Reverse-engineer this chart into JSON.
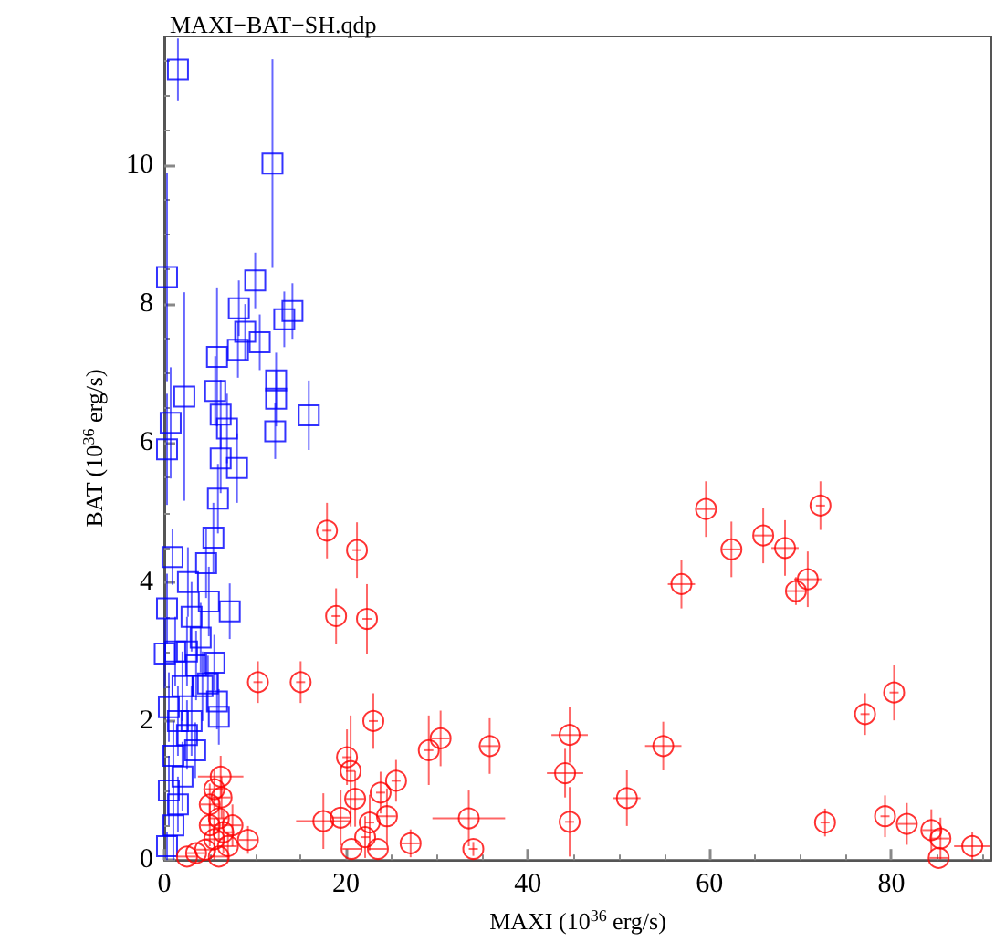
{
  "chart_data": {
    "type": "scatter",
    "title": "MAXI−BAT−SH.qdp",
    "xlabel": "MAXI (10$^{36}$ erg/s)",
    "ylabel": "BAT (10$^{36}$ erg/s)",
    "xlim": [
      0,
      91
    ],
    "xticks": [
      0,
      20,
      40,
      60,
      80
    ],
    "ylim": [
      0,
      11.85
    ],
    "yticks": [
      0,
      2,
      4,
      6,
      8,
      10
    ],
    "grid": false,
    "series": [
      {
        "color": "#0000ff",
        "marker": "square",
        "x": [
          1.5,
          11.9,
          0.3,
          10.0,
          8.2,
          14.1,
          13.2,
          8.9,
          10.5,
          8.1,
          5.8,
          12.3,
          12.3,
          2.2,
          5.6,
          6.2,
          15.9,
          6.9,
          12.2,
          0.7,
          0.3,
          6.2,
          8.0,
          5.9,
          5.4,
          4.6,
          0.9,
          2.6,
          7.2,
          4.9,
          0.3,
          0.05,
          5.5,
          4.8,
          5.8,
          6.0,
          3.4,
          1.0,
          1.5,
          2.0,
          2.5,
          3.0,
          0.5,
          1.0,
          2.0,
          3.0,
          3.5,
          4.0,
          0.5,
          1.2,
          2.5,
          4.2,
          0.3,
          1.5
        ],
        "values": [
          11.37,
          10.02,
          8.39,
          8.34,
          7.94,
          7.9,
          7.78,
          7.6,
          7.45,
          7.34,
          7.24,
          6.9,
          6.64,
          6.67,
          6.75,
          6.41,
          6.4,
          6.21,
          6.17,
          6.29,
          5.91,
          5.78,
          5.64,
          5.2,
          4.64,
          4.27,
          4.36,
          4.0,
          3.58,
          3.72,
          3.62,
          2.97,
          2.84,
          2.54,
          2.28,
          2.06,
          1.58,
          1.5,
          2.0,
          2.5,
          3.0,
          3.5,
          1.0,
          0.5,
          1.2,
          2.0,
          2.8,
          3.2,
          2.2,
          3.0,
          1.8,
          2.5,
          0.2,
          0.8
        ],
        "errors": [
          0.45,
          1.5,
          1.5,
          0.4,
          0.4,
          0.4,
          0.4,
          0.4,
          0.4,
          0.4,
          1.0,
          0.4,
          0.4,
          1.5,
          0.5,
          0.5,
          0.5,
          0.5,
          0.4,
          0.8,
          0.8,
          0.5,
          0.5,
          0.5,
          0.5,
          0.5,
          0.4,
          0.5,
          0.4,
          0.5,
          0.5,
          0.5,
          0.4,
          0.4,
          0.4,
          0.4,
          0.4,
          0.5,
          0.5,
          0.5,
          0.5,
          0.5,
          0.5,
          0.5,
          0.5,
          0.5,
          0.5,
          0.5,
          0.5,
          0.5,
          0.5,
          0.5,
          0.2,
          0.4
        ]
      },
      {
        "color": "#ff0000",
        "marker": "circle",
        "x": [
          59.6,
          72.2,
          62.4,
          65.9,
          68.3,
          56.9,
          70.8,
          69.5,
          80.3,
          77.1,
          72.7,
          79.3,
          81.7,
          84.4,
          85.4,
          85.2,
          88.9,
          54.9,
          50.9,
          44.6,
          44.1,
          44.6,
          35.8,
          33.5,
          34.0,
          30.4,
          29.1,
          17.9,
          21.2,
          18.9,
          22.3,
          10.3,
          15.0,
          23.0,
          20.1,
          20.5,
          25.5,
          23.8,
          21.0,
          24.5,
          17.5,
          19.4,
          22.6,
          22.1,
          20.6,
          23.5,
          27.1,
          9.2,
          6.2,
          5.5,
          5.0,
          5.5,
          6.0,
          6.5,
          7.0,
          4.5,
          3.5,
          2.5,
          6.0,
          7.5,
          5.0,
          6.3
        ],
        "values": [
          5.05,
          5.1,
          4.47,
          4.67,
          4.49,
          3.97,
          4.04,
          3.87,
          2.41,
          2.1,
          0.54,
          0.63,
          0.52,
          0.43,
          0.31,
          0.03,
          0.2,
          1.64,
          0.89,
          1.8,
          1.25,
          0.55,
          1.64,
          0.6,
          0.16,
          1.75,
          1.58,
          4.74,
          4.46,
          3.51,
          3.47,
          2.56,
          2.56,
          2.0,
          1.48,
          1.28,
          1.14,
          0.97,
          0.88,
          0.63,
          0.56,
          0.61,
          0.54,
          0.33,
          0.16,
          0.16,
          0.24,
          0.29,
          1.2,
          1.02,
          0.5,
          0.3,
          0.6,
          0.4,
          0.2,
          0.15,
          0.1,
          0.05,
          0.05,
          0.5,
          0.8,
          0.9
        ],
        "errors": [
          0.4,
          0.35,
          0.4,
          0.4,
          0.4,
          0.35,
          0.4,
          0.2,
          0.4,
          0.3,
          0.2,
          0.3,
          0.3,
          0.3,
          0.3,
          null,
          0.2,
          0.35,
          0.4,
          0.4,
          0.35,
          0.5,
          0.4,
          0.4,
          0.1,
          0.4,
          0.5,
          0.4,
          0.4,
          0.4,
          0.5,
          0.3,
          0.3,
          0.4,
          0.4,
          0.8,
          0.3,
          0.3,
          0.4,
          0.4,
          0.4,
          0.4,
          0.4,
          0.3,
          null,
          null,
          0.2,
          0.2,
          0.3,
          0.3,
          0.3,
          0.3,
          0.3,
          0.3,
          0.2,
          null,
          null,
          null,
          null,
          0.3,
          0.3,
          0.3
        ],
        "xerrors": [
          1.0,
          0.5,
          1.0,
          1.0,
          1.5,
          1.5,
          1.5,
          1.0,
          0.5,
          0.5,
          0.5,
          0.5,
          1.0,
          1.0,
          1.0,
          1.0,
          2.0,
          2.0,
          1.5,
          2.0,
          2.0,
          0.5,
          1.0,
          4.0,
          0.5,
          1.0,
          0.5,
          0.5,
          0.5,
          0.5,
          0.5,
          0.5,
          0.5,
          0.5,
          0.5,
          0.5,
          0.5,
          0.5,
          1.0,
          1.0,
          3.0,
          1.0,
          0.5,
          0.5,
          1.0,
          1.0,
          1.0,
          1.0,
          2.5,
          1.0,
          1.0,
          1.0,
          1.0,
          1.0,
          1.0,
          1.0,
          1.0,
          1.0,
          1.0,
          1.0,
          1.0,
          1.0
        ]
      }
    ]
  }
}
